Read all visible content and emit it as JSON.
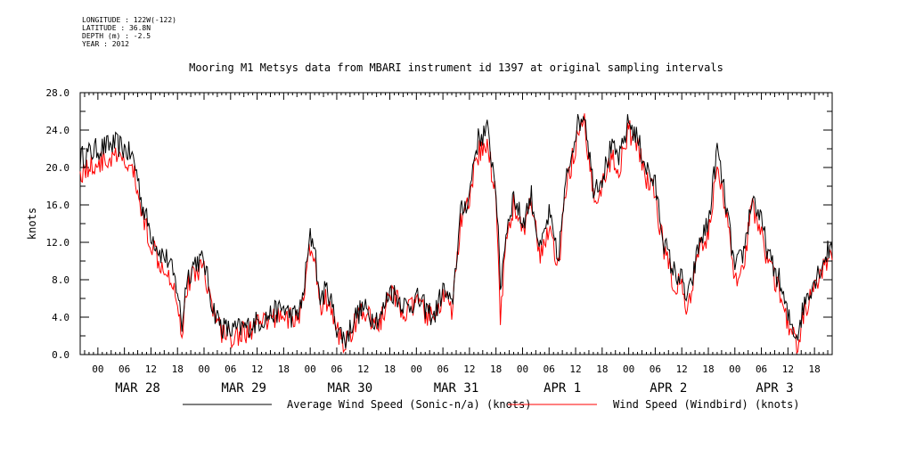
{
  "meta": {
    "longitude": "LONGITUDE : 122W(-122)",
    "latitude": "LATITUDE : 36.8N",
    "depth": "DEPTH (m) : -2.5",
    "year": "YEAR : 2012"
  },
  "chart_data": {
    "type": "line",
    "title": "Mooring M1 Metsys data from MBARI instrument id 1397 at original sampling intervals",
    "xlabel": "",
    "ylabel": "knots",
    "ylim": [
      0,
      28
    ],
    "yticks": [
      "0.0",
      "4.0",
      "8.0",
      "12.0",
      "16.0",
      "20.0",
      "24.0",
      "28.0"
    ],
    "xlim_hours": [
      -4,
      166
    ],
    "hour_tick_labels": [
      "00",
      "06",
      "12",
      "18"
    ],
    "day_labels": [
      "MAR 28",
      "MAR 29",
      "MAR 30",
      "MAR 31",
      "APR  1",
      "APR  2",
      "APR  3"
    ],
    "series": [
      {
        "name": "Average Wind Speed (Sonic-n/a) (knots)",
        "color": "#000000",
        "x_hours": [
          -4,
          0,
          4,
          6,
          8,
          9,
          10,
          12,
          14,
          16,
          18,
          19,
          20,
          22,
          24,
          26,
          28,
          30,
          34,
          38,
          42,
          44,
          46,
          48,
          49,
          50,
          52,
          54,
          56,
          58,
          60,
          62,
          64,
          66,
          68,
          70,
          72,
          74,
          76,
          78,
          80,
          82,
          84,
          85,
          86,
          88,
          90,
          91,
          92,
          93,
          94,
          96,
          98,
          100,
          102,
          104,
          106,
          108,
          110,
          112,
          114,
          116,
          118,
          120,
          122,
          124,
          126,
          128,
          130,
          132,
          133,
          134,
          136,
          138,
          140,
          142,
          144,
          146,
          148,
          150,
          152,
          154,
          156,
          158,
          160,
          162,
          164,
          166
        ],
        "y": [
          21,
          22,
          22.5,
          22,
          21,
          19,
          16,
          13,
          11,
          10,
          7,
          3,
          8,
          10,
          10,
          5,
          3,
          2.5,
          3,
          4,
          5,
          4,
          5,
          12.5,
          12,
          6,
          7,
          3,
          1.5,
          4,
          5,
          4,
          4,
          7,
          6,
          5,
          6,
          5,
          4,
          7,
          5,
          15,
          17,
          21,
          23,
          24,
          18,
          7,
          12,
          15,
          17,
          14,
          17,
          11,
          15,
          10,
          19,
          24,
          26,
          18,
          19,
          22,
          21,
          25,
          23,
          20,
          18,
          12,
          9,
          8,
          6,
          7,
          12,
          14,
          22,
          16,
          9,
          11,
          17,
          14,
          10,
          8,
          4,
          2,
          6,
          8,
          10,
          12
        ]
      },
      {
        "name": "Wind Speed (Windbird) (knots)",
        "color": "#ff0000",
        "x_hours": [
          -4,
          0,
          4,
          6,
          8,
          9,
          10,
          12,
          14,
          16,
          18,
          19,
          20,
          22,
          24,
          26,
          28,
          30,
          34,
          38,
          42,
          44,
          46,
          48,
          49,
          50,
          52,
          54,
          56,
          58,
          60,
          62,
          64,
          66,
          68,
          70,
          72,
          74,
          76,
          78,
          80,
          82,
          84,
          85,
          86,
          88,
          90,
          91,
          92,
          93,
          94,
          96,
          98,
          100,
          102,
          104,
          106,
          108,
          110,
          112,
          114,
          116,
          118,
          120,
          122,
          124,
          126,
          128,
          130,
          132,
          133,
          134,
          136,
          138,
          140,
          142,
          144,
          146,
          148,
          150,
          152,
          154,
          156,
          158,
          160,
          162,
          164,
          166
        ],
        "y": [
          19.5,
          20.5,
          21,
          20.5,
          19.5,
          17.5,
          15,
          12,
          10,
          9,
          6,
          2,
          7,
          9,
          9.5,
          4.5,
          2.5,
          2,
          2.5,
          3.5,
          4.5,
          3.5,
          4.5,
          11.5,
          11,
          5,
          6,
          2.5,
          1,
          3.5,
          4.5,
          3.5,
          3.5,
          6.5,
          5.5,
          4.5,
          5.5,
          4.5,
          3.5,
          6.5,
          4.5,
          14,
          16,
          19.5,
          21.5,
          22.5,
          17,
          4,
          11,
          14,
          16,
          13,
          16,
          10,
          14,
          9,
          18,
          22.5,
          24.5,
          17,
          18,
          21,
          20,
          24,
          22,
          19,
          17,
          11,
          8,
          7,
          5,
          6,
          11,
          13,
          20.5,
          15,
          8,
          10,
          16,
          13,
          9,
          7,
          3,
          1,
          5,
          7,
          9,
          11
        ]
      }
    ],
    "grid": false,
    "legend_position": "bottom"
  }
}
